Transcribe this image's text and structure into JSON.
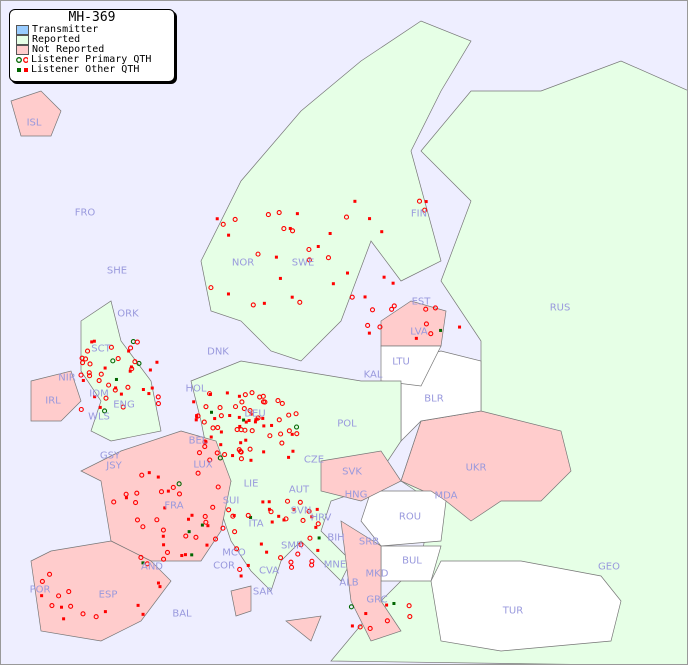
{
  "title": "MH-369",
  "legend": [
    {
      "label": "Transmitter",
      "color": "#99ccff"
    },
    {
      "label": "Reported",
      "color": "#e6ffe6"
    },
    {
      "label": "Not Reported",
      "color": "#ffcccc"
    },
    {
      "label": "Listener Primary QTH",
      "colors": [
        "#006600",
        "#ff0000"
      ],
      "marker": "circle"
    },
    {
      "label": "Listener Other QTH",
      "colors": [
        "#006600",
        "#ff0000"
      ],
      "marker": "square"
    }
  ],
  "colors": {
    "sea": "#eeeeff",
    "reported": "#e6ffe6",
    "not_reported": "#ffcccc",
    "no_data": "#ffffff",
    "label": "#9999dd"
  },
  "countries": [
    "ISL",
    "FRO",
    "SHE",
    "ORK",
    "NOR",
    "SWE",
    "FIN",
    "EST",
    "LVA",
    "RUS",
    "LTU",
    "KAL",
    "DNK",
    "SCT",
    "NIR",
    "IOM",
    "IRL",
    "WLS",
    "ENG",
    "HOL",
    "BLR",
    "POL",
    "DEU",
    "GSY",
    "JSY",
    "BEL",
    "LUX",
    "CZE",
    "SVK",
    "UKR",
    "MDA",
    "FRA",
    "SUI",
    "LIE",
    "AUT",
    "HNG",
    "SVN",
    "HRV",
    "ROU",
    "ITA",
    "BIH",
    "SRB",
    "SMR",
    "MCO",
    "COR",
    "CVA",
    "MNE",
    "BUL",
    "GEO",
    "AND",
    "ALB",
    "MKD",
    "POR",
    "ESP",
    "SAR",
    "GRC",
    "TUR",
    "BAL"
  ]
}
